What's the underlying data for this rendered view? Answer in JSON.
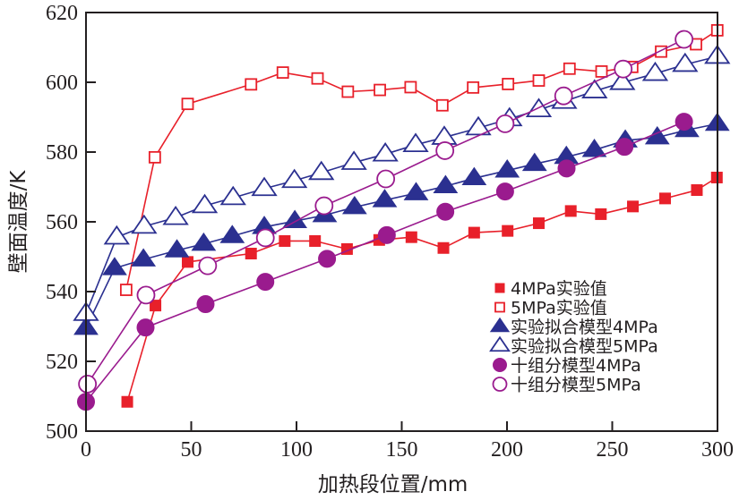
{
  "chart_data": {
    "type": "line",
    "title": "",
    "xlabel": "加热段位置/mm",
    "ylabel": "壁面温度/K",
    "xlim": [
      0,
      300
    ],
    "ylim": [
      500,
      620
    ],
    "xticks": [
      0,
      50,
      100,
      150,
      200,
      250,
      300
    ],
    "xtick_labels": [
      "0",
      "50",
      "100",
      "150",
      "200",
      "250",
      "300"
    ],
    "yticks": [
      500,
      520,
      540,
      560,
      580,
      600,
      620
    ],
    "ytick_labels": [
      "500",
      "520",
      "540",
      "560",
      "580",
      "600",
      "620"
    ],
    "grid": false,
    "legend_position": "bottom-right",
    "series": [
      {
        "name": "4MPa实验值",
        "marker": "square",
        "filled": true,
        "color": "#e8202a",
        "x": [
          19.6,
          33.0,
          48.3,
          78.4,
          94.4,
          108.8,
          124.0,
          139.3,
          154.6,
          169.8,
          184.4,
          200.3,
          215.1,
          230.3,
          244.6,
          259.8,
          275.1,
          290.2,
          299.7
        ],
        "y": [
          508.4,
          536.0,
          548.5,
          550.9,
          554.5,
          554.5,
          552.2,
          554.8,
          555.6,
          552.5,
          556.9,
          557.4,
          559.6,
          563.1,
          562.2,
          564.4,
          566.7,
          569.1,
          572.7
        ]
      },
      {
        "name": "5MPa实验值",
        "marker": "square",
        "filled": false,
        "color": "#e8202a",
        "x": [
          19.1,
          32.7,
          48.3,
          78.4,
          93.5,
          110.0,
          124.4,
          139.6,
          154.2,
          169.3,
          183.9,
          200.5,
          215.1,
          229.7,
          244.9,
          259.5,
          273.2,
          289.8,
          299.9
        ],
        "y": [
          540.5,
          578.5,
          593.8,
          599.4,
          602.8,
          601.1,
          597.3,
          597.8,
          598.6,
          593.4,
          598.5,
          599.5,
          600.5,
          603.9,
          603.1,
          604.4,
          608.8,
          610.9,
          614.9
        ]
      },
      {
        "name": "实验拟合模型4MPa",
        "marker": "triangle",
        "filled": true,
        "color": "#2b3090",
        "x": [
          0,
          13.6,
          27.3,
          43.2,
          55.9,
          69.5,
          84.7,
          99.2,
          113.4,
          127.6,
          141.9,
          156.8,
          170.8,
          184.4,
          200.1,
          213.1,
          228.2,
          241.5,
          256.2,
          271.4,
          285.5,
          299.9
        ],
        "y": [
          529.6,
          546.7,
          549.2,
          551.8,
          553.7,
          555.9,
          558.5,
          560.2,
          561.9,
          564.2,
          566.2,
          568.2,
          570.2,
          572.5,
          574.7,
          576.6,
          578.6,
          580.6,
          583.3,
          584.2,
          586.3,
          588.1
        ]
      },
      {
        "name": "实验拟合模型5MPa",
        "marker": "triangle",
        "filled": false,
        "color": "#2b3090",
        "x": [
          0,
          14.6,
          27.6,
          42.6,
          56.4,
          69.9,
          84.7,
          99.0,
          111.8,
          127.3,
          142.2,
          156.6,
          170.2,
          186.4,
          201.2,
          215.1,
          227.2,
          241.6,
          254.8,
          270.4,
          284.6,
          299.9
        ],
        "y": [
          533.7,
          555.6,
          558.7,
          561.2,
          564.6,
          566.9,
          569.5,
          571.8,
          574.1,
          577.0,
          579.4,
          582.1,
          584.2,
          586.9,
          589.5,
          592.1,
          594.5,
          597.5,
          599.9,
          602.5,
          605.1,
          607.4
        ]
      },
      {
        "name": "十组分模型4MPa",
        "marker": "circle",
        "filled": true,
        "color": "#9a1b8e",
        "x": [
          0,
          28.3,
          56.8,
          85.2,
          114.5,
          142.9,
          170.7,
          199.1,
          228.3,
          255.8,
          284.1
        ],
        "y": [
          508.4,
          529.7,
          536.4,
          542.8,
          549.4,
          556.2,
          562.9,
          568.7,
          575.3,
          581.5,
          588.7
        ]
      },
      {
        "name": "十组分模型5MPa",
        "marker": "circle",
        "filled": false,
        "color": "#9a1b8e",
        "x": [
          0.7,
          28.5,
          57.8,
          85.2,
          113.1,
          142.4,
          170.5,
          199.1,
          226.9,
          255.2,
          284.1
        ],
        "y": [
          513.5,
          539.0,
          547.4,
          555.4,
          564.6,
          572.3,
          580.4,
          588.1,
          596.1,
          603.8,
          612.3
        ]
      }
    ]
  }
}
